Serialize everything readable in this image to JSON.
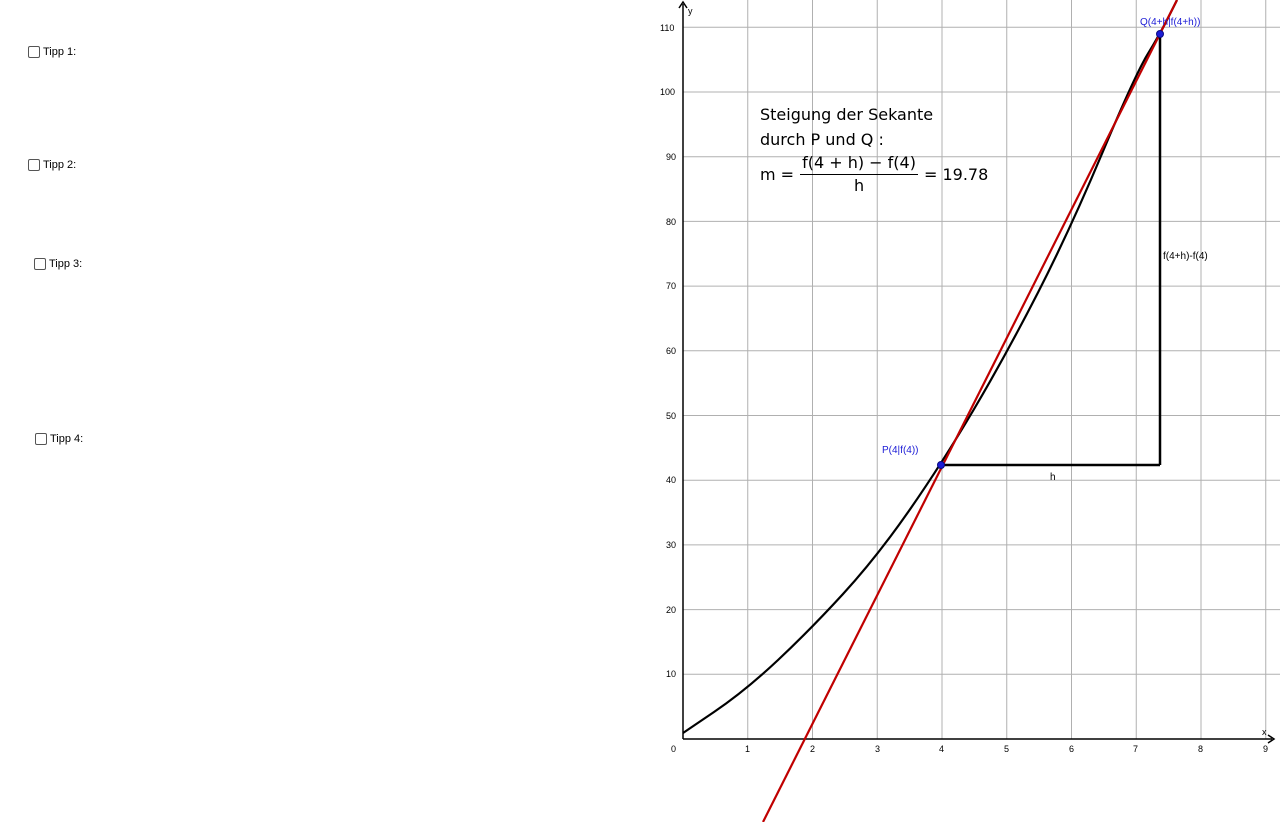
{
  "tipps": [
    {
      "label": "Tipp 1:",
      "checked": false
    },
    {
      "label": "Tipp 2:",
      "checked": false
    },
    {
      "label": "Tipp 3:",
      "checked": false
    },
    {
      "label": "Tipp 4:",
      "checked": false
    }
  ],
  "formula": {
    "line1": "Steigung der Sekante",
    "line2": "durch P und Q :",
    "m_prefix": "m =",
    "numerator": "f(4 + h) − f(4)",
    "denominator": "h",
    "result": "= 19.78"
  },
  "graph": {
    "axis_x_label": "x",
    "axis_y_label": "y",
    "x_ticks": [
      "0",
      "1",
      "2",
      "3",
      "4",
      "5",
      "6",
      "7",
      "8",
      "9"
    ],
    "y_ticks": [
      "10",
      "20",
      "30",
      "40",
      "50",
      "60",
      "70",
      "80",
      "90",
      "100",
      "110"
    ],
    "point_P_label": "P(4|f(4))",
    "point_Q_label": "Q(4+h|f(4+h))",
    "h_label": "h",
    "delta_label": "f(4+h)-f(4)",
    "colors": {
      "curve": "#000000",
      "secant": "#c00000",
      "points": "#1c1cd6",
      "grid": "#b0b0b0"
    }
  }
}
